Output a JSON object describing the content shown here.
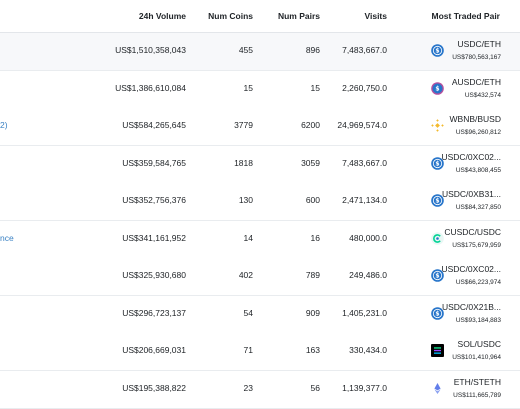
{
  "columns": {
    "volume": "24h Volume",
    "coins": "Num Coins",
    "pairs": "Num Pairs",
    "visits": "Visits",
    "most_traded": "Most Traded Pair"
  },
  "rows": [
    {
      "name_fragment": "",
      "volume": "US$1,510,358,043",
      "coins": "455",
      "pairs": "896",
      "visits": "7,483,667.0",
      "pair": "USDC/ETH",
      "pair_volume": "US$780,563,167",
      "icon": "usdc-icon",
      "highlight": true
    },
    {
      "name_fragment": "",
      "volume": "US$1,386,610,084",
      "coins": "15",
      "pairs": "15",
      "visits": "2,260,750.0",
      "pair": "AUSDC/ETH",
      "pair_volume": "US$432,574",
      "icon": "ausdc-icon",
      "highlight": false
    },
    {
      "name_fragment": "2)",
      "volume": "US$584,265,645",
      "coins": "3779",
      "pairs": "6200",
      "visits": "24,969,574.0",
      "pair": "WBNB/BUSD",
      "pair_volume": "US$96,260,812",
      "icon": "bnb-icon",
      "highlight": false
    },
    {
      "name_fragment": "",
      "volume": "US$359,584,765",
      "coins": "1818",
      "pairs": "3059",
      "visits": "7,483,667.0",
      "pair": "USDC/0XC02...",
      "pair_volume": "US$43,808,455",
      "icon": "usdc-icon",
      "highlight": false
    },
    {
      "name_fragment": "",
      "volume": "US$352,756,376",
      "coins": "130",
      "pairs": "600",
      "visits": "2,471,134.0",
      "pair": "USDC/0XB31...",
      "pair_volume": "US$84,327,850",
      "icon": "usdc-icon",
      "highlight": false
    },
    {
      "name_fragment": "nce",
      "volume": "US$341,161,952",
      "coins": "14",
      "pairs": "16",
      "visits": "480,000.0",
      "pair": "CUSDC/USDC",
      "pair_volume": "US$175,679,959",
      "icon": "cusdc-icon",
      "highlight": false
    },
    {
      "name_fragment": "",
      "volume": "US$325,930,680",
      "coins": "402",
      "pairs": "789",
      "visits": "249,486.0",
      "pair": "USDC/0XC02...",
      "pair_volume": "US$66,223,974",
      "icon": "usdc-icon",
      "highlight": false
    },
    {
      "name_fragment": "",
      "volume": "US$296,723,137",
      "coins": "54",
      "pairs": "909",
      "visits": "1,405,231.0",
      "pair": "USDC/0X21B...",
      "pair_volume": "US$93,184,883",
      "icon": "usdc-icon",
      "highlight": false
    },
    {
      "name_fragment": "",
      "volume": "US$206,669,031",
      "coins": "71",
      "pairs": "163",
      "visits": "330,434.0",
      "pair": "SOL/USDC",
      "pair_volume": "US$101,410,964",
      "icon": "sol-icon",
      "highlight": false
    },
    {
      "name_fragment": "",
      "volume": "US$195,388,822",
      "coins": "23",
      "pairs": "56",
      "visits": "1,139,377.0",
      "pair": "ETH/STETH",
      "pair_volume": "US$111,665,789",
      "icon": "eth-icon",
      "highlight": false
    }
  ],
  "colors": {
    "usdc": "#2775ca",
    "bnb": "#f3ba2f",
    "cusdc_teal": "#00d395",
    "eth": "#627eea",
    "link": "#3b82c4"
  }
}
